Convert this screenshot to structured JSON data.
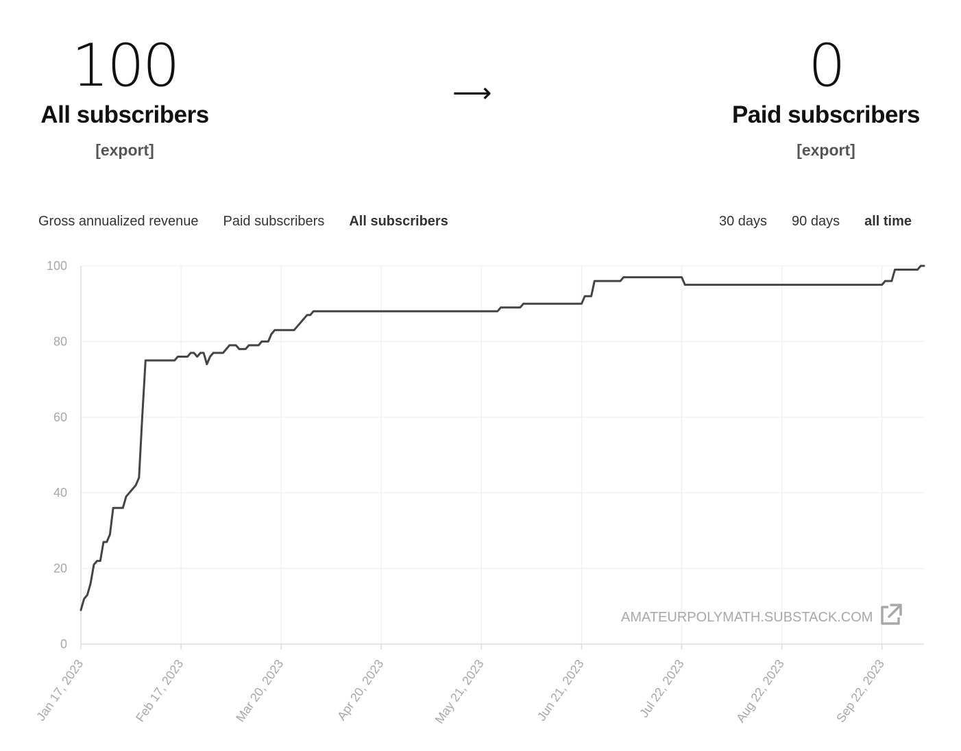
{
  "summary": {
    "all_count": "100",
    "all_label": "All subscribers",
    "all_export": "[export]",
    "arrow": "⟶",
    "paid_count": "0",
    "paid_label": "Paid subscribers",
    "paid_export": "[export]"
  },
  "metric_tabs": [
    {
      "label": "Gross annualized revenue",
      "active": false
    },
    {
      "label": "Paid subscribers",
      "active": false
    },
    {
      "label": "All subscribers",
      "active": true
    }
  ],
  "range_tabs": [
    {
      "label": "30 days",
      "active": false
    },
    {
      "label": "90 days",
      "active": false
    },
    {
      "label": "all time",
      "active": true
    }
  ],
  "watermark": {
    "text": "AMATEURPOLYMATH.SUBSTACK.COM",
    "icon": "external-link-icon"
  },
  "colors": {
    "line": "#444444",
    "grid": "#efefef",
    "axis": "#dddddd",
    "tick": "#a8a8a8"
  },
  "chart_data": {
    "type": "line",
    "title": "",
    "xlabel": "",
    "ylabel": "",
    "ylim": [
      0,
      100
    ],
    "y_ticks": [
      0,
      20,
      40,
      60,
      80,
      100
    ],
    "x_range": [
      "2023-01-17",
      "2023-10-05"
    ],
    "x_ticks": [
      "Jan 17, 2023",
      "Feb 17, 2023",
      "Mar 20, 2023",
      "Apr 20, 2023",
      "May 21, 2023",
      "Jun 21, 2023",
      "Jul 22, 2023",
      "Aug 22, 2023",
      "Sep 22, 2023"
    ],
    "x_tick_dates": [
      "2023-01-17",
      "2023-02-17",
      "2023-03-20",
      "2023-04-20",
      "2023-05-21",
      "2023-06-21",
      "2023-07-22",
      "2023-08-22",
      "2023-09-22"
    ],
    "grid": true,
    "series": [
      {
        "points": [
          [
            "2023-01-17",
            9
          ],
          [
            "2023-01-18",
            12
          ],
          [
            "2023-01-19",
            13
          ],
          [
            "2023-01-20",
            16
          ],
          [
            "2023-01-21",
            21
          ],
          [
            "2023-01-22",
            22
          ],
          [
            "2023-01-23",
            22
          ],
          [
            "2023-01-24",
            27
          ],
          [
            "2023-01-25",
            27
          ],
          [
            "2023-01-26",
            29
          ],
          [
            "2023-01-27",
            36
          ],
          [
            "2023-01-28",
            36
          ],
          [
            "2023-01-30",
            36
          ],
          [
            "2023-01-31",
            39
          ],
          [
            "2023-02-01",
            40
          ],
          [
            "2023-02-03",
            42
          ],
          [
            "2023-02-04",
            44
          ],
          [
            "2023-02-05",
            60
          ],
          [
            "2023-02-06",
            75
          ],
          [
            "2023-02-15",
            75
          ],
          [
            "2023-02-16",
            76
          ],
          [
            "2023-02-19",
            76
          ],
          [
            "2023-02-20",
            77
          ],
          [
            "2023-02-21",
            77
          ],
          [
            "2023-02-22",
            76
          ],
          [
            "2023-02-23",
            77
          ],
          [
            "2023-02-24",
            77
          ],
          [
            "2023-02-25",
            74
          ],
          [
            "2023-02-26",
            76
          ],
          [
            "2023-02-27",
            77
          ],
          [
            "2023-03-02",
            77
          ],
          [
            "2023-03-04",
            79
          ],
          [
            "2023-03-06",
            79
          ],
          [
            "2023-03-07",
            78
          ],
          [
            "2023-03-09",
            78
          ],
          [
            "2023-03-10",
            79
          ],
          [
            "2023-03-13",
            79
          ],
          [
            "2023-03-14",
            80
          ],
          [
            "2023-03-16",
            80
          ],
          [
            "2023-03-17",
            82
          ],
          [
            "2023-03-18",
            83
          ],
          [
            "2023-03-24",
            83
          ],
          [
            "2023-03-26",
            85
          ],
          [
            "2023-03-28",
            87
          ],
          [
            "2023-03-29",
            87
          ],
          [
            "2023-03-30",
            88
          ],
          [
            "2023-05-26",
            88
          ],
          [
            "2023-05-27",
            89
          ],
          [
            "2023-06-02",
            89
          ],
          [
            "2023-06-03",
            90
          ],
          [
            "2023-06-21",
            90
          ],
          [
            "2023-06-22",
            92
          ],
          [
            "2023-06-24",
            92
          ],
          [
            "2023-06-25",
            96
          ],
          [
            "2023-07-03",
            96
          ],
          [
            "2023-07-04",
            97
          ],
          [
            "2023-07-22",
            97
          ],
          [
            "2023-07-23",
            95
          ],
          [
            "2023-09-22",
            95
          ],
          [
            "2023-09-23",
            96
          ],
          [
            "2023-09-25",
            96
          ],
          [
            "2023-09-26",
            99
          ],
          [
            "2023-10-03",
            99
          ],
          [
            "2023-10-04",
            100
          ],
          [
            "2023-10-05",
            100
          ]
        ]
      }
    ]
  }
}
